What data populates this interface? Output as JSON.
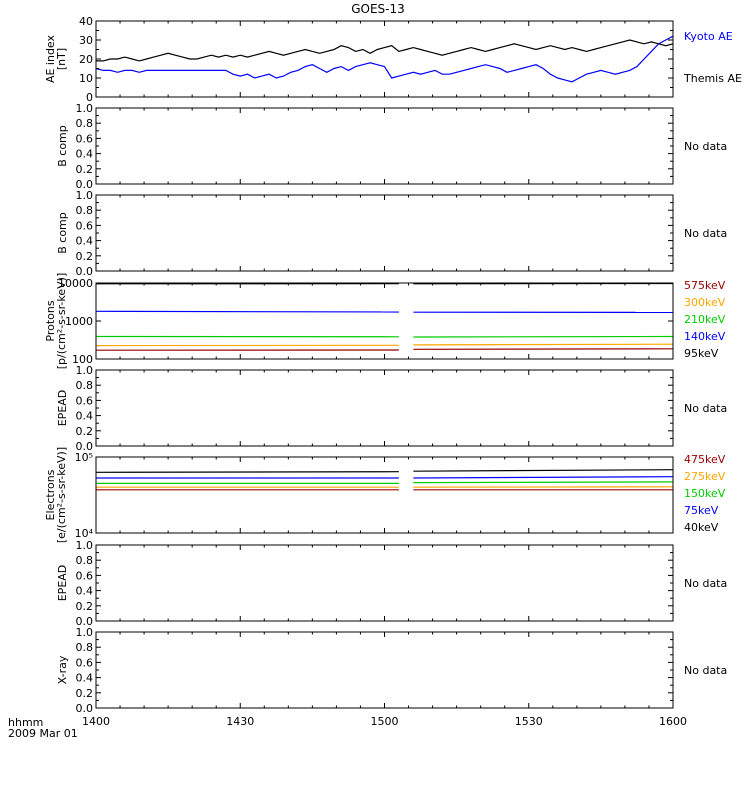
{
  "title": "GOES-13",
  "footer": {
    "time_label": "hhmm",
    "date_label": "2009 Mar 01"
  },
  "chart_data": [
    {
      "type": "line",
      "name": "ae",
      "ylabel": [
        "AE index",
        "[nT]"
      ],
      "ylim": [
        0,
        40
      ],
      "yscale": "linear",
      "yticks": [
        0,
        10,
        20,
        30,
        40
      ],
      "ytick_labels": [
        "0",
        "10",
        "20",
        "30",
        "40"
      ],
      "xlim": [
        0,
        120
      ],
      "series": [
        {
          "name": "Kyoto AE",
          "color": "#0000ff",
          "x": [
            0,
            1.5,
            3,
            4.5,
            6,
            7.5,
            9,
            10.5,
            12,
            13.5,
            15,
            16.5,
            18,
            19.5,
            21,
            22.5,
            24,
            25.5,
            27,
            28.5,
            30,
            31.5,
            33,
            34.5,
            36,
            37.5,
            39,
            40.5,
            42,
            43.5,
            45,
            46.5,
            48,
            49.5,
            51,
            52.5,
            54,
            55.5,
            57,
            58.5,
            60,
            61.5,
            63,
            64.5,
            66,
            67.5,
            69,
            70.5,
            72,
            73.5,
            75,
            76.5,
            78,
            79.5,
            81,
            82.5,
            84,
            85.5,
            87,
            88.5,
            90,
            91.5,
            93,
            94.5,
            96,
            97.5,
            99,
            100.5,
            102,
            103.5,
            105,
            106.5,
            108,
            109.5,
            111,
            112.5,
            114,
            115.5,
            117,
            118.5,
            120
          ],
          "y": [
            15,
            14,
            14,
            13,
            14,
            14,
            13,
            14,
            14,
            14,
            14,
            14,
            14,
            14,
            14,
            14,
            14,
            14,
            14,
            12,
            11,
            12,
            10,
            11,
            12,
            10,
            11,
            13,
            14,
            16,
            17,
            15,
            13,
            15,
            16,
            14,
            16,
            17,
            18,
            17,
            16,
            10,
            11,
            12,
            13,
            12,
            13,
            14,
            12,
            12,
            13,
            14,
            15,
            16,
            17,
            16,
            15,
            13,
            14,
            15,
            16,
            17,
            15,
            12,
            10,
            9,
            8,
            10,
            12,
            13,
            14,
            13,
            12,
            13,
            14,
            16,
            20,
            24,
            28,
            30,
            32
          ]
        },
        {
          "name": "Themis AE",
          "color": "#000000",
          "x": [
            0,
            1.5,
            3,
            4.5,
            6,
            7.5,
            9,
            10.5,
            12,
            13.5,
            15,
            16.5,
            18,
            19.5,
            21,
            22.5,
            24,
            25.5,
            27,
            28.5,
            30,
            31.5,
            33,
            34.5,
            36,
            37.5,
            39,
            40.5,
            42,
            43.5,
            45,
            46.5,
            48,
            49.5,
            51,
            52.5,
            54,
            55.5,
            57,
            58.5,
            60,
            61.5,
            63,
            64.5,
            66,
            67.5,
            69,
            70.5,
            72,
            73.5,
            75,
            76.5,
            78,
            79.5,
            81,
            82.5,
            84,
            85.5,
            87,
            88.5,
            90,
            91.5,
            93,
            94.5,
            96,
            97.5,
            99,
            100.5,
            102,
            103.5,
            105,
            106.5,
            108,
            109.5,
            111,
            112.5,
            114,
            115.5,
            117,
            118.5,
            120
          ],
          "y": [
            19,
            19,
            20,
            20,
            21,
            20,
            19,
            20,
            21,
            22,
            23,
            22,
            21,
            20,
            20,
            21,
            22,
            21,
            22,
            21,
            22,
            21,
            22,
            23,
            24,
            23,
            22,
            23,
            24,
            25,
            24,
            23,
            24,
            25,
            27,
            26,
            24,
            25,
            23,
            25,
            26,
            27,
            24,
            25,
            26,
            25,
            24,
            23,
            22,
            23,
            24,
            25,
            26,
            25,
            24,
            25,
            26,
            27,
            28,
            27,
            26,
            25,
            26,
            27,
            26,
            25,
            26,
            25,
            24,
            25,
            26,
            27,
            28,
            29,
            30,
            29,
            28,
            29,
            28,
            27,
            28
          ]
        }
      ],
      "legend": [
        "Kyoto AE",
        "Themis AE"
      ],
      "legend_colors": [
        "#0000ff",
        "#000000"
      ]
    },
    {
      "type": "line",
      "name": "b_comp_1",
      "ylabel": [
        "B comp"
      ],
      "ylim": [
        0,
        1
      ],
      "yscale": "linear",
      "yticks": [
        0,
        0.2,
        0.4,
        0.6,
        0.8,
        1.0
      ],
      "ytick_labels": [
        "0.0",
        "0.2",
        "0.4",
        "0.6",
        "0.8",
        "1.0"
      ],
      "xlim": [
        0,
        120
      ],
      "series": [],
      "legend": [
        "No data"
      ],
      "legend_colors": [
        "#000000"
      ]
    },
    {
      "type": "line",
      "name": "b_comp_2",
      "ylabel": [
        "B comp"
      ],
      "ylim": [
        0,
        1
      ],
      "yscale": "linear",
      "yticks": [
        0,
        0.2,
        0.4,
        0.6,
        0.8,
        1.0
      ],
      "ytick_labels": [
        "0.0",
        "0.2",
        "0.4",
        "0.6",
        "0.8",
        "1.0"
      ],
      "xlim": [
        0,
        120
      ],
      "series": [],
      "legend": [
        "No data"
      ],
      "legend_colors": [
        "#000000"
      ]
    },
    {
      "type": "line",
      "name": "protons",
      "ylabel": [
        "Protons",
        "[p/(cm²-s-sr-keV)]"
      ],
      "ylim": [
        100,
        10000
      ],
      "yscale": "log",
      "yticks": [
        100,
        1000,
        10000
      ],
      "ytick_labels": [
        "100",
        "1000",
        "10000"
      ],
      "xlim": [
        0,
        120
      ],
      "gap": [
        63,
        66
      ],
      "series": [
        {
          "name": "95keV",
          "color": "#000000",
          "x": [
            0,
            63,
            66,
            120
          ],
          "y": [
            9500,
            9600,
            9550,
            9700
          ]
        },
        {
          "name": "140keV",
          "color": "#0000ff",
          "x": [
            0,
            63,
            66,
            120
          ],
          "y": [
            1800,
            1720,
            1700,
            1680
          ]
        },
        {
          "name": "210keV",
          "color": "#00cc00",
          "x": [
            0,
            63,
            66,
            120
          ],
          "y": [
            390,
            385,
            380,
            390
          ]
        },
        {
          "name": "300keV",
          "color": "#ffa500",
          "x": [
            0,
            63,
            66,
            120
          ],
          "y": [
            225,
            230,
            235,
            245
          ]
        },
        {
          "name": "575keV",
          "color": "#990000",
          "x": [
            0,
            63,
            66,
            120
          ],
          "y": [
            170,
            172,
            180,
            185
          ]
        }
      ],
      "legend": [
        "575keV",
        "300keV",
        "210keV",
        "140keV",
        "95keV"
      ],
      "legend_colors": [
        "#990000",
        "#ffa500",
        "#00cc00",
        "#0000ff",
        "#000000"
      ]
    },
    {
      "type": "line",
      "name": "epead_1",
      "ylabel": [
        "EPEAD"
      ],
      "ylim": [
        0,
        1
      ],
      "yscale": "linear",
      "yticks": [
        0,
        0.2,
        0.4,
        0.6,
        0.8,
        1.0
      ],
      "ytick_labels": [
        "0.0",
        "0.2",
        "0.4",
        "0.6",
        "0.8",
        "1.0"
      ],
      "xlim": [
        0,
        120
      ],
      "series": [],
      "legend": [
        "No data"
      ],
      "legend_colors": [
        "#000000"
      ]
    },
    {
      "type": "line",
      "name": "electrons",
      "ylabel": [
        "Electrons",
        "[e/(cm²-s-sr-keV)]"
      ],
      "ylim": [
        10000,
        100000
      ],
      "yscale": "log",
      "yticks": [
        10000,
        100000
      ],
      "ytick_labels": [
        "10⁴",
        "10⁵"
      ],
      "xlim": [
        0,
        120
      ],
      "gap": [
        63,
        66
      ],
      "series": [
        {
          "name": "40keV",
          "color": "#000000",
          "x": [
            0,
            63,
            66,
            120
          ],
          "y": [
            63000,
            64000,
            65000,
            68000
          ]
        },
        {
          "name": "75keV",
          "color": "#0000ff",
          "x": [
            0,
            63,
            66,
            120
          ],
          "y": [
            53000,
            53000,
            53000,
            55000
          ]
        },
        {
          "name": "150keV",
          "color": "#00cc00",
          "x": [
            0,
            63,
            66,
            120
          ],
          "y": [
            45000,
            45000,
            46000,
            47000
          ]
        },
        {
          "name": "275keV",
          "color": "#ffa500",
          "x": [
            0,
            63,
            66,
            120
          ],
          "y": [
            40000,
            40000,
            40000,
            40500
          ]
        },
        {
          "name": "475keV",
          "color": "#990000",
          "x": [
            0,
            63,
            66,
            120
          ],
          "y": [
            37000,
            37000,
            37000,
            37000
          ]
        }
      ],
      "legend": [
        "475keV",
        "275keV",
        "150keV",
        "75keV",
        "40keV"
      ],
      "legend_colors": [
        "#990000",
        "#ffa500",
        "#00cc00",
        "#0000ff",
        "#000000"
      ]
    },
    {
      "type": "line",
      "name": "epead_2",
      "ylabel": [
        "EPEAD"
      ],
      "ylim": [
        0,
        1
      ],
      "yscale": "linear",
      "yticks": [
        0,
        0.2,
        0.4,
        0.6,
        0.8,
        1.0
      ],
      "ytick_labels": [
        "0.0",
        "0.2",
        "0.4",
        "0.6",
        "0.8",
        "1.0"
      ],
      "xlim": [
        0,
        120
      ],
      "series": [],
      "legend": [
        "No data"
      ],
      "legend_colors": [
        "#000000"
      ]
    },
    {
      "type": "line",
      "name": "xray",
      "ylabel": [
        "X-ray"
      ],
      "ylim": [
        0,
        1
      ],
      "yscale": "linear",
      "yticks": [
        0,
        0.2,
        0.4,
        0.6,
        0.8,
        1.0
      ],
      "ytick_labels": [
        "0.0",
        "0.2",
        "0.4",
        "0.6",
        "0.8",
        "1.0"
      ],
      "xlim": [
        0,
        120
      ],
      "series": [],
      "legend": [
        "No data"
      ],
      "legend_colors": [
        "#000000"
      ]
    }
  ],
  "xaxis": {
    "ticks": [
      0,
      30,
      60,
      90,
      120
    ],
    "tick_labels": [
      "1400",
      "1430",
      "1500",
      "1530",
      "1600"
    ]
  }
}
